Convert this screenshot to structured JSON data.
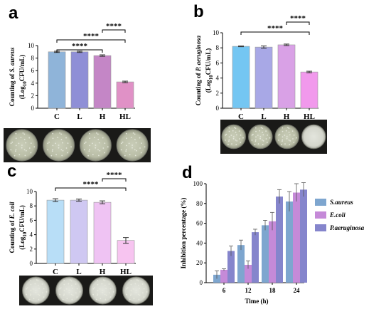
{
  "colors": {
    "a": [
      "#8fb4d9",
      "#8f8fd6",
      "#c486c6",
      "#e091c6"
    ],
    "b": [
      "#74c6f2",
      "#a8a8e6",
      "#d9a1e6",
      "#f199ec"
    ],
    "c": [
      "#b8def7",
      "#cfc8f2",
      "#efc3f3",
      "#f7c4f0"
    ],
    "d": [
      "#7ea6cf",
      "#c58ad8",
      "#8585cc"
    ]
  },
  "chart_data": [
    {
      "id": "a",
      "panel_label": "a",
      "type": "bar",
      "categories": [
        "C",
        "L",
        "H",
        "HL"
      ],
      "values": [
        9.0,
        9.0,
        8.4,
        4.2
      ],
      "errors": [
        0.1,
        0.1,
        0.12,
        0.12
      ],
      "ylabel_line1": "Counting of S. aureus",
      "ylabel_line2": "(Log10CFU/mL)",
      "ylim": [
        0,
        10
      ],
      "yticks": [
        "0",
        "2",
        "4",
        "6",
        "8",
        "10"
      ],
      "significance": [
        {
          "from": "C",
          "to": "H",
          "label": "****"
        },
        {
          "from": "C",
          "to": "HL",
          "label": "****"
        },
        {
          "from": "H",
          "to": "HL",
          "label": "****"
        }
      ]
    },
    {
      "id": "b",
      "panel_label": "b",
      "type": "bar",
      "categories": [
        "C",
        "L",
        "H",
        "HL"
      ],
      "values": [
        8.2,
        8.1,
        8.4,
        4.8
      ],
      "errors": [
        0.05,
        0.15,
        0.1,
        0.1
      ],
      "ylabel_line1": "Counting of P. aeruginosa",
      "ylabel_line2": "(Log10CFU/mL)",
      "ylim": [
        0,
        10
      ],
      "yticks": [
        "0",
        "2",
        "4",
        "6",
        "8",
        "10"
      ],
      "significance": [
        {
          "from": "C",
          "to": "HL",
          "label": "****"
        },
        {
          "from": "H",
          "to": "HL",
          "label": "****"
        }
      ]
    },
    {
      "id": "c",
      "panel_label": "c",
      "type": "bar",
      "categories": [
        "C",
        "L",
        "H",
        "HL"
      ],
      "values": [
        8.8,
        8.8,
        8.5,
        3.2
      ],
      "errors": [
        0.2,
        0.15,
        0.2,
        0.4
      ],
      "ylabel_line1": "Counting of E. coli",
      "ylabel_line2": "(Log10CFU/mL)",
      "ylim": [
        0,
        10
      ],
      "yticks": [
        "0",
        "2",
        "4",
        "6",
        "8",
        "10"
      ],
      "significance": [
        {
          "from": "C",
          "to": "HL",
          "label": "****"
        },
        {
          "from": "H",
          "to": "HL",
          "label": "****"
        }
      ]
    },
    {
      "id": "d",
      "panel_label": "d",
      "type": "bar",
      "x": [
        "6",
        "12",
        "18",
        "24"
      ],
      "xlabel": "Time (h)",
      "ylabel": "Inhibition percentage (%)",
      "ylim": [
        0,
        100
      ],
      "yticks": [
        "0",
        "20",
        "40",
        "60",
        "80",
        "100"
      ],
      "series": [
        {
          "name": "S.aureus",
          "values": [
            8,
            38,
            58,
            82
          ],
          "errors": [
            4,
            5,
            5,
            10
          ]
        },
        {
          "name": "E.coli",
          "values": [
            13,
            18,
            62,
            91
          ],
          "errors": [
            1,
            4,
            9,
            9
          ]
        },
        {
          "name": "P.aeruginosa",
          "values": [
            32,
            51,
            87,
            94
          ],
          "errors": [
            5,
            3,
            7,
            7
          ]
        }
      ],
      "legend_position": "right"
    }
  ]
}
